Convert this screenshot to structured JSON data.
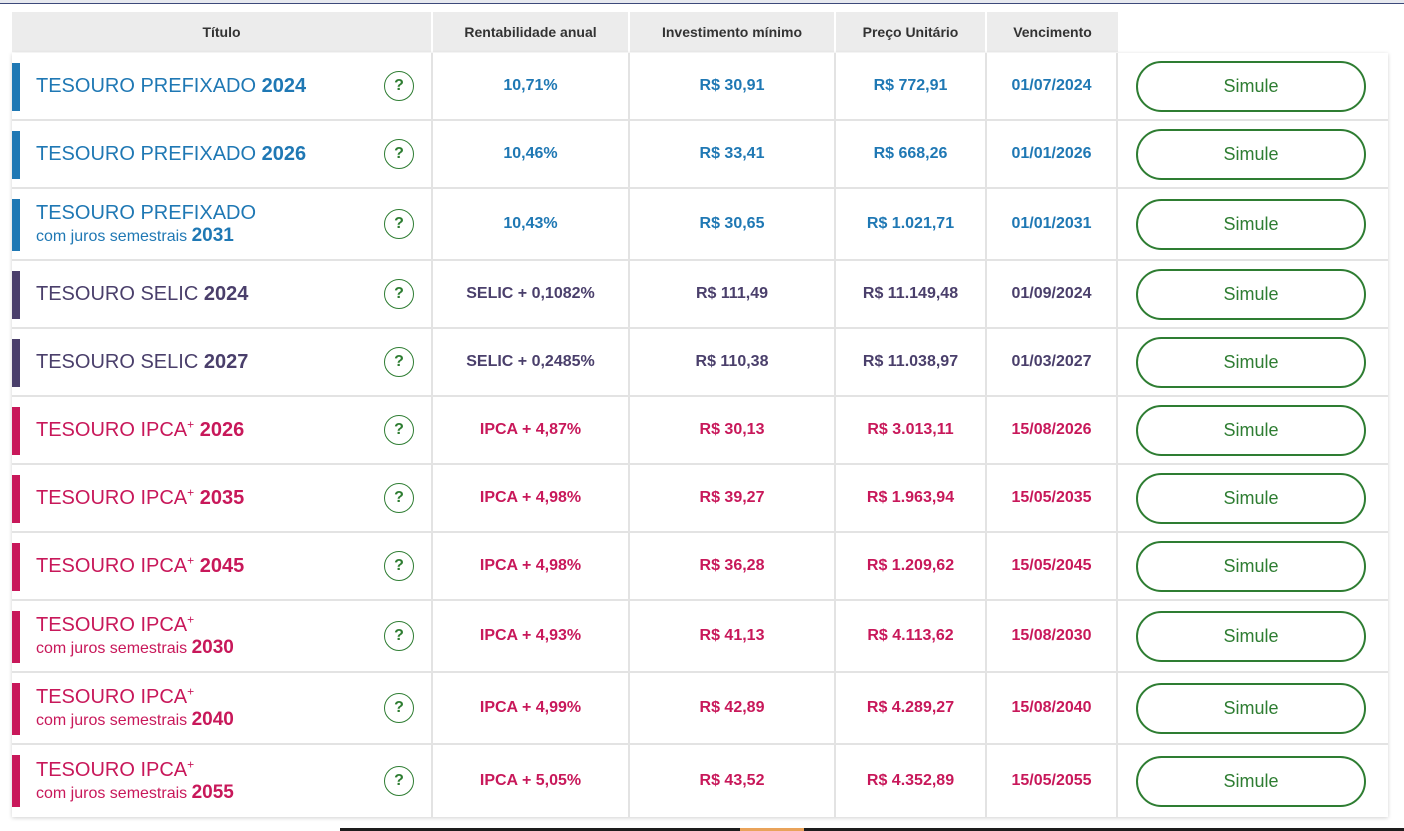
{
  "header": {
    "titulo": "Título",
    "rentabilidade": "Rentabilidade anual",
    "investimento": "Investimento mínimo",
    "preco": "Preço Unitário",
    "vencimento": "Vencimento"
  },
  "help_glyph": "?",
  "colors": {
    "prefixado": "#1f78b4",
    "selic": "#4a3f6b",
    "ipca": "#c8185a",
    "action": "#2e7d32"
  },
  "rows": [
    {
      "group": "prefixado",
      "name": "TESOURO PREFIXADO",
      "sup": "",
      "sub": "",
      "year": "2024",
      "rent": "10,71%",
      "inv": "R$ 30,91",
      "preco": "R$ 772,91",
      "venc": "01/07/2024",
      "action": "Simule"
    },
    {
      "group": "prefixado",
      "name": "TESOURO PREFIXADO",
      "sup": "",
      "sub": "",
      "year": "2026",
      "rent": "10,46%",
      "inv": "R$ 33,41",
      "preco": "R$ 668,26",
      "venc": "01/01/2026",
      "action": "Simule"
    },
    {
      "group": "prefixado",
      "name": "TESOURO PREFIXADO",
      "sup": "",
      "sub": "com juros semestrais",
      "year": "2031",
      "rent": "10,43%",
      "inv": "R$ 30,65",
      "preco": "R$ 1.021,71",
      "venc": "01/01/2031",
      "action": "Simule"
    },
    {
      "group": "selic",
      "name": "TESOURO SELIC",
      "sup": "",
      "sub": "",
      "year": "2024",
      "rent": "SELIC + 0,1082%",
      "inv": "R$ 111,49",
      "preco": "R$ 11.149,48",
      "venc": "01/09/2024",
      "action": "Simule"
    },
    {
      "group": "selic",
      "name": "TESOURO SELIC",
      "sup": "",
      "sub": "",
      "year": "2027",
      "rent": "SELIC + 0,2485%",
      "inv": "R$ 110,38",
      "preco": "R$ 11.038,97",
      "venc": "01/03/2027",
      "action": "Simule"
    },
    {
      "group": "ipca",
      "name": "TESOURO IPCA",
      "sup": "+",
      "sub": "",
      "year": "2026",
      "rent": "IPCA + 4,87%",
      "inv": "R$ 30,13",
      "preco": "R$ 3.013,11",
      "venc": "15/08/2026",
      "action": "Simule"
    },
    {
      "group": "ipca",
      "name": "TESOURO IPCA",
      "sup": "+",
      "sub": "",
      "year": "2035",
      "rent": "IPCA + 4,98%",
      "inv": "R$ 39,27",
      "preco": "R$ 1.963,94",
      "venc": "15/05/2035",
      "action": "Simule"
    },
    {
      "group": "ipca",
      "name": "TESOURO IPCA",
      "sup": "+",
      "sub": "",
      "year": "2045",
      "rent": "IPCA + 4,98%",
      "inv": "R$ 36,28",
      "preco": "R$ 1.209,62",
      "venc": "15/05/2045",
      "action": "Simule"
    },
    {
      "group": "ipca",
      "name": "TESOURO IPCA",
      "sup": "+",
      "sub": "com juros semestrais",
      "year": "2030",
      "rent": "IPCA + 4,93%",
      "inv": "R$ 41,13",
      "preco": "R$ 4.113,62",
      "venc": "15/08/2030",
      "action": "Simule"
    },
    {
      "group": "ipca",
      "name": "TESOURO IPCA",
      "sup": "+",
      "sub": "com juros semestrais",
      "year": "2040",
      "rent": "IPCA + 4,99%",
      "inv": "R$ 42,89",
      "preco": "R$ 4.289,27",
      "venc": "15/08/2040",
      "action": "Simule"
    },
    {
      "group": "ipca",
      "name": "TESOURO IPCA",
      "sup": "+",
      "sub": "com juros semestrais",
      "year": "2055",
      "rent": "IPCA + 5,05%",
      "inv": "R$ 43,52",
      "preco": "R$ 4.352,89",
      "venc": "15/05/2055",
      "action": "Simule"
    }
  ]
}
